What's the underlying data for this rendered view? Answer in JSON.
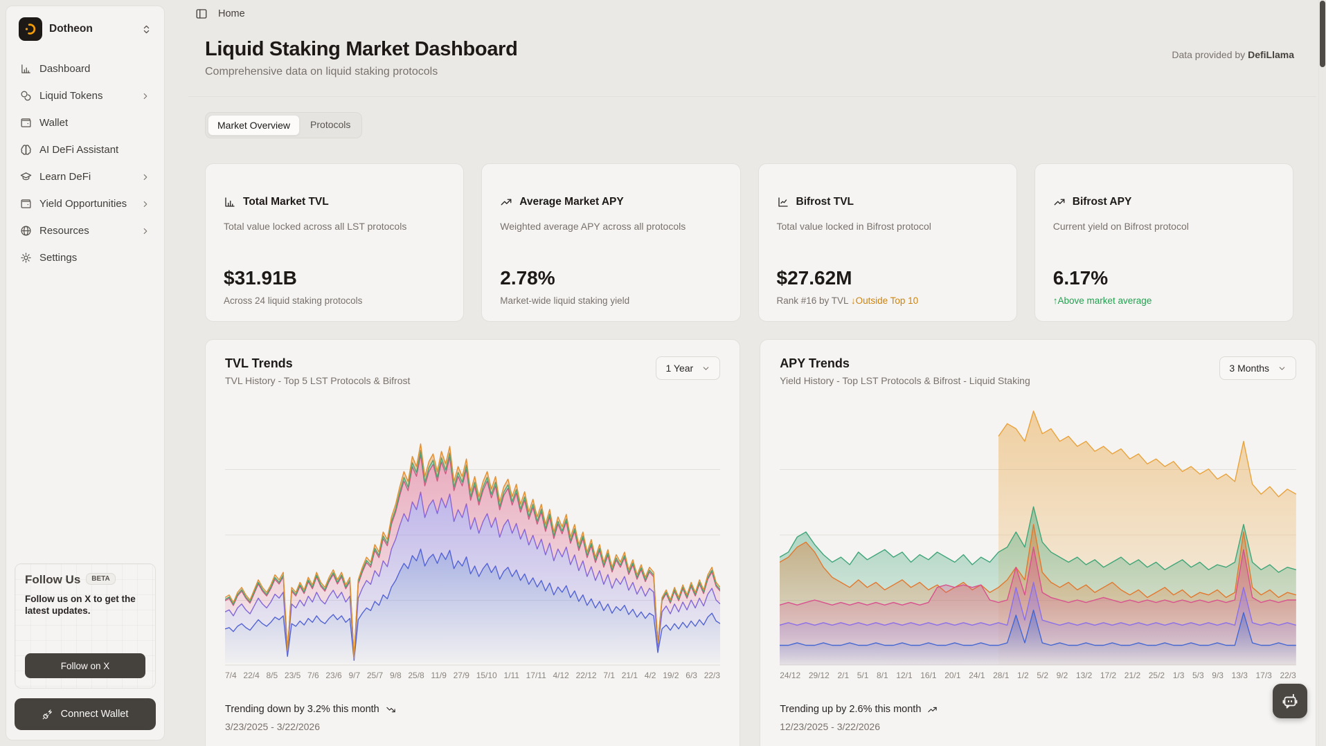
{
  "sidebar": {
    "brand": {
      "name": "Dotheon",
      "logo_color": "#f59e0b",
      "logo_bg": "#1c1917"
    },
    "items": [
      {
        "label": "Dashboard",
        "icon": "bar-chart-icon",
        "submenu": false
      },
      {
        "label": "Liquid Tokens",
        "icon": "coins-icon",
        "submenu": true
      },
      {
        "label": "Wallet",
        "icon": "wallet-icon",
        "submenu": false
      },
      {
        "label": "AI DeFi Assistant",
        "icon": "brain-icon",
        "submenu": false
      },
      {
        "label": "Learn DeFi",
        "icon": "graduation-cap-icon",
        "submenu": true
      },
      {
        "label": "Yield Opportunities",
        "icon": "wallet-icon",
        "submenu": true
      },
      {
        "label": "Resources",
        "icon": "globe-icon",
        "submenu": true
      },
      {
        "label": "Settings",
        "icon": "gear-icon",
        "submenu": false
      }
    ],
    "follow_card": {
      "title": "Follow Us",
      "badge": "BETA",
      "text": "Follow us on X to get the latest updates.",
      "button": "Follow on X"
    },
    "connect_wallet": "Connect Wallet"
  },
  "breadcrumb": {
    "home": "Home"
  },
  "header": {
    "title": "Liquid Staking Market Dashboard",
    "subtitle": "Comprehensive data on liquid staking protocols",
    "data_note_prefix": "Data provided by ",
    "data_note_brand": "DefiLlama"
  },
  "tabs": [
    {
      "label": "Market Overview",
      "active": true
    },
    {
      "label": "Protocols",
      "active": false
    }
  ],
  "stat_cards": [
    {
      "icon": "bar-chart-icon",
      "title": "Total Market TVL",
      "description": "Total value locked across all LST protocols",
      "value": "$31.91B",
      "note": "Across 24 liquid staking protocols"
    },
    {
      "icon": "trending-up-icon",
      "title": "Average Market APY",
      "description": "Weighted average APY across all protocols",
      "value": "2.78%",
      "note": "Market-wide liquid staking yield"
    },
    {
      "icon": "line-chart-icon",
      "title": "Bifrost TVL",
      "description": "Total value locked in Bifrost protocol",
      "value": "$27.62M",
      "note": "Rank #16 by TVL",
      "badge": "↓Outside Top 10",
      "badge_color": "#cd830c"
    },
    {
      "icon": "trending-up-icon",
      "title": "Bifrost APY",
      "description": "Current yield on Bifrost protocol",
      "value": "6.17%",
      "badge": "↑Above market average",
      "badge_color": "#23a050"
    }
  ],
  "chart_data": [
    {
      "type": "area",
      "mode": "stacked_shares",
      "title": "TVL Trends",
      "subtitle": "TVL History - Top 5 LST Protocols & Bifrost",
      "range": "1 Year",
      "footer_trend": "Trending down by 3.2% this month",
      "footer_trend_icon": "trending-down-icon",
      "footer_range": "3/23/2025 - 3/22/2026",
      "y_axis_visible": false,
      "grid": true,
      "x_ticks": [
        "7/4",
        "22/4",
        "8/5",
        "23/5",
        "7/6",
        "23/6",
        "9/7",
        "25/7",
        "9/8",
        "25/8",
        "11/9",
        "27/9",
        "15/10",
        "1/11",
        "17/11",
        "4/12",
        "22/12",
        "7/1",
        "21/1",
        "4/2",
        "19/2",
        "6/3",
        "22/3"
      ],
      "total": [
        0.26,
        0.27,
        0.24,
        0.28,
        0.3,
        0.27,
        0.25,
        0.29,
        0.33,
        0.3,
        0.28,
        0.31,
        0.35,
        0.33,
        0.36,
        0.05,
        0.3,
        0.28,
        0.32,
        0.29,
        0.34,
        0.31,
        0.36,
        0.32,
        0.3,
        0.34,
        0.37,
        0.33,
        0.36,
        0.31,
        0.34,
        0.02,
        0.33,
        0.38,
        0.42,
        0.4,
        0.47,
        0.44,
        0.52,
        0.49,
        0.58,
        0.63,
        0.7,
        0.76,
        0.72,
        0.82,
        0.78,
        0.87,
        0.74,
        0.8,
        0.83,
        0.76,
        0.84,
        0.79,
        0.86,
        0.72,
        0.78,
        0.74,
        0.81,
        0.68,
        0.74,
        0.66,
        0.72,
        0.76,
        0.69,
        0.74,
        0.64,
        0.7,
        0.73,
        0.66,
        0.71,
        0.63,
        0.68,
        0.6,
        0.65,
        0.58,
        0.63,
        0.55,
        0.61,
        0.52,
        0.58,
        0.54,
        0.59,
        0.5,
        0.55,
        0.47,
        0.52,
        0.44,
        0.49,
        0.42,
        0.47,
        0.4,
        0.45,
        0.38,
        0.43,
        0.4,
        0.44,
        0.37,
        0.41,
        0.35,
        0.39,
        0.34,
        0.38,
        0.36,
        0.08,
        0.26,
        0.29,
        0.25,
        0.3,
        0.26,
        0.31,
        0.27,
        0.32,
        0.28,
        0.33,
        0.29,
        0.35,
        0.38,
        0.32,
        0.3
      ],
      "series": [
        {
          "name": "band-blue",
          "color": "#4f63d2",
          "share": 0.52
        },
        {
          "name": "band-violet",
          "color": "#7b68e0",
          "share": 0.26
        },
        {
          "name": "band-pink",
          "color": "#db5380",
          "share": 0.17
        },
        {
          "name": "band-green",
          "color": "#3fa578",
          "share": 0.02
        },
        {
          "name": "band-orange",
          "color": "#e08f35",
          "share": 0.03
        }
      ]
    },
    {
      "type": "area",
      "mode": "overlay",
      "title": "APY Trends",
      "subtitle": "Yield History - Top LST Protocols & Bifrost - Liquid Staking",
      "range": "3 Months",
      "footer_trend": "Trending up by 2.6% this month",
      "footer_trend_icon": "trending-up-icon",
      "footer_range": "12/23/2025 - 3/22/2026",
      "y_axis_visible": false,
      "grid": true,
      "x_ticks": [
        "24/12",
        "29/12",
        "2/1",
        "5/1",
        "8/1",
        "12/1",
        "16/1",
        "20/1",
        "24/1",
        "28/1",
        "1/2",
        "5/2",
        "9/2",
        "13/2",
        "17/2",
        "21/2",
        "25/2",
        "1/3",
        "5/3",
        "9/3",
        "13/3",
        "17/3",
        "22/3"
      ],
      "series": [
        {
          "name": "series-amber-top",
          "color": "#e9a23c",
          "values": [
            null,
            null,
            null,
            null,
            null,
            null,
            null,
            null,
            null,
            null,
            null,
            null,
            null,
            null,
            null,
            null,
            null,
            null,
            null,
            null,
            null,
            null,
            null,
            null,
            null,
            0.9,
            0.95,
            0.93,
            0.88,
            1.0,
            0.91,
            0.93,
            0.88,
            0.9,
            0.86,
            0.88,
            0.84,
            0.86,
            0.83,
            0.85,
            0.81,
            0.83,
            0.79,
            0.81,
            0.78,
            0.8,
            0.76,
            0.78,
            0.75,
            0.77,
            0.73,
            0.75,
            0.72,
            0.88,
            0.71,
            0.67,
            0.7,
            0.66,
            0.69,
            0.67
          ]
        },
        {
          "name": "series-green",
          "color": "#3fa578",
          "values": [
            0.42,
            0.44,
            0.5,
            0.52,
            0.47,
            0.43,
            0.4,
            0.42,
            0.39,
            0.44,
            0.41,
            0.43,
            0.45,
            0.42,
            0.44,
            0.4,
            0.43,
            0.41,
            0.44,
            0.42,
            0.4,
            0.43,
            0.39,
            0.42,
            0.4,
            0.44,
            0.46,
            0.52,
            0.46,
            0.62,
            0.48,
            0.44,
            0.42,
            0.4,
            0.42,
            0.39,
            0.41,
            0.38,
            0.4,
            0.42,
            0.39,
            0.41,
            0.38,
            0.4,
            0.37,
            0.39,
            0.41,
            0.38,
            0.4,
            0.37,
            0.39,
            0.38,
            0.4,
            0.55,
            0.4,
            0.37,
            0.39,
            0.36,
            0.38,
            0.37
          ]
        },
        {
          "name": "series-orange",
          "color": "#e2772e",
          "values": [
            0.4,
            0.42,
            0.46,
            0.48,
            0.44,
            0.38,
            0.34,
            0.32,
            0.3,
            0.33,
            0.3,
            0.32,
            0.29,
            0.31,
            0.33,
            0.3,
            0.32,
            0.29,
            0.31,
            0.28,
            0.3,
            0.32,
            0.29,
            0.31,
            0.28,
            0.3,
            0.33,
            0.38,
            0.33,
            0.55,
            0.36,
            0.32,
            0.3,
            0.32,
            0.29,
            0.31,
            0.28,
            0.3,
            0.32,
            0.29,
            0.27,
            0.29,
            0.26,
            0.28,
            0.3,
            0.27,
            0.29,
            0.26,
            0.28,
            0.27,
            0.29,
            0.26,
            0.28,
            0.52,
            0.3,
            0.27,
            0.29,
            0.26,
            0.28,
            0.27
          ]
        },
        {
          "name": "series-pink",
          "color": "#d8508d",
          "values": [
            0.23,
            0.24,
            0.23,
            0.24,
            0.25,
            0.24,
            0.23,
            0.24,
            0.23,
            0.24,
            0.23,
            0.24,
            0.23,
            0.24,
            0.23,
            0.24,
            0.23,
            0.24,
            0.3,
            0.31,
            0.3,
            0.31,
            0.3,
            0.31,
            0.25,
            0.24,
            0.25,
            0.38,
            0.27,
            0.46,
            0.28,
            0.26,
            0.25,
            0.24,
            0.25,
            0.24,
            0.25,
            0.26,
            0.25,
            0.24,
            0.25,
            0.24,
            0.25,
            0.24,
            0.25,
            0.24,
            0.25,
            0.24,
            0.25,
            0.24,
            0.25,
            0.24,
            0.25,
            0.45,
            0.26,
            0.24,
            0.25,
            0.24,
            0.25,
            0.25
          ]
        },
        {
          "name": "series-purple",
          "color": "#8b6fe8",
          "values": [
            0.15,
            0.16,
            0.15,
            0.16,
            0.15,
            0.16,
            0.15,
            0.16,
            0.15,
            0.16,
            0.15,
            0.16,
            0.15,
            0.16,
            0.15,
            0.16,
            0.15,
            0.16,
            0.15,
            0.16,
            0.15,
            0.16,
            0.15,
            0.16,
            0.15,
            0.16,
            0.15,
            0.3,
            0.17,
            0.32,
            0.17,
            0.16,
            0.15,
            0.16,
            0.15,
            0.16,
            0.15,
            0.16,
            0.15,
            0.16,
            0.15,
            0.16,
            0.15,
            0.16,
            0.15,
            0.16,
            0.15,
            0.16,
            0.15,
            0.16,
            0.15,
            0.16,
            0.15,
            0.3,
            0.16,
            0.15,
            0.16,
            0.15,
            0.16,
            0.15
          ]
        },
        {
          "name": "series-blue",
          "color": "#4467d2",
          "values": [
            0.07,
            0.07,
            0.08,
            0.07,
            0.07,
            0.08,
            0.07,
            0.07,
            0.08,
            0.07,
            0.07,
            0.08,
            0.07,
            0.07,
            0.08,
            0.07,
            0.07,
            0.08,
            0.07,
            0.07,
            0.08,
            0.07,
            0.07,
            0.08,
            0.07,
            0.07,
            0.08,
            0.19,
            0.08,
            0.21,
            0.08,
            0.07,
            0.08,
            0.07,
            0.07,
            0.08,
            0.07,
            0.07,
            0.08,
            0.07,
            0.07,
            0.08,
            0.07,
            0.07,
            0.08,
            0.07,
            0.07,
            0.08,
            0.07,
            0.07,
            0.08,
            0.07,
            0.07,
            0.2,
            0.08,
            0.07,
            0.07,
            0.08,
            0.07,
            0.07
          ]
        }
      ]
    }
  ],
  "colors": {
    "card_bg": "#f5f4f2",
    "page_bg": "#ebe9e6",
    "amber": "#cd830c",
    "green": "#23a050",
    "dark_button": "#45413d"
  }
}
